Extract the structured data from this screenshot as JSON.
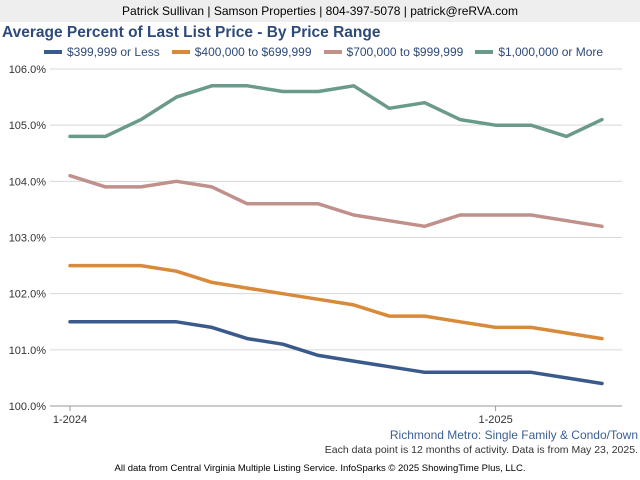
{
  "header": {
    "contact": "Patrick Sullivan | Samson Properties | 804-397-5078 | patrick@reRVA.com"
  },
  "chart_data": {
    "type": "line",
    "title": "Average Percent of Last List Price - By Price Range",
    "x_tick_labels": [
      "1-2024",
      "1-2025"
    ],
    "y_tick_labels": [
      "100.0%",
      "101.0%",
      "102.0%",
      "103.0%",
      "104.0%",
      "105.0%",
      "106.0%"
    ],
    "ylim": [
      100.0,
      106.0
    ],
    "grid": true,
    "legend_position": "top",
    "months": [
      "2024-01",
      "2024-02",
      "2024-03",
      "2024-04",
      "2024-05",
      "2024-06",
      "2024-07",
      "2024-08",
      "2024-09",
      "2024-10",
      "2024-11",
      "2024-12",
      "2025-01",
      "2025-02",
      "2025-03",
      "2025-04"
    ],
    "series": [
      {
        "name": "$399,999 or Less",
        "color": "#3b5a8c",
        "values": [
          101.5,
          101.5,
          101.5,
          101.5,
          101.4,
          101.2,
          101.1,
          100.9,
          100.8,
          100.7,
          100.6,
          100.6,
          100.6,
          100.6,
          100.5,
          100.4
        ]
      },
      {
        "name": "$400,000 to $699,999",
        "color": "#d9893a",
        "values": [
          102.5,
          102.5,
          102.5,
          102.4,
          102.2,
          102.1,
          102.0,
          101.9,
          101.8,
          101.6,
          101.6,
          101.5,
          101.4,
          101.4,
          101.3,
          101.2
        ]
      },
      {
        "name": "$700,000 to $999,999",
        "color": "#c0908a",
        "values": [
          104.1,
          103.9,
          103.9,
          104.0,
          103.9,
          103.6,
          103.6,
          103.6,
          103.4,
          103.3,
          103.2,
          103.4,
          103.4,
          103.4,
          103.3,
          103.2
        ]
      },
      {
        "name": "$1,000,000 or More",
        "color": "#6a9a8c",
        "values": [
          104.8,
          104.8,
          105.1,
          105.5,
          105.7,
          105.7,
          105.6,
          105.6,
          105.7,
          105.3,
          105.4,
          105.1,
          105.0,
          105.0,
          104.8,
          105.1
        ]
      }
    ]
  },
  "footer": {
    "region": "Richmond Metro: Single Family & Condo/Town",
    "note": "Each data point is 12 months of activity. Data is from May 23, 2025.",
    "source": "All data from Central Virginia Multiple Listing Service. InfoSparks © 2025 ShowingTime Plus, LLC."
  }
}
